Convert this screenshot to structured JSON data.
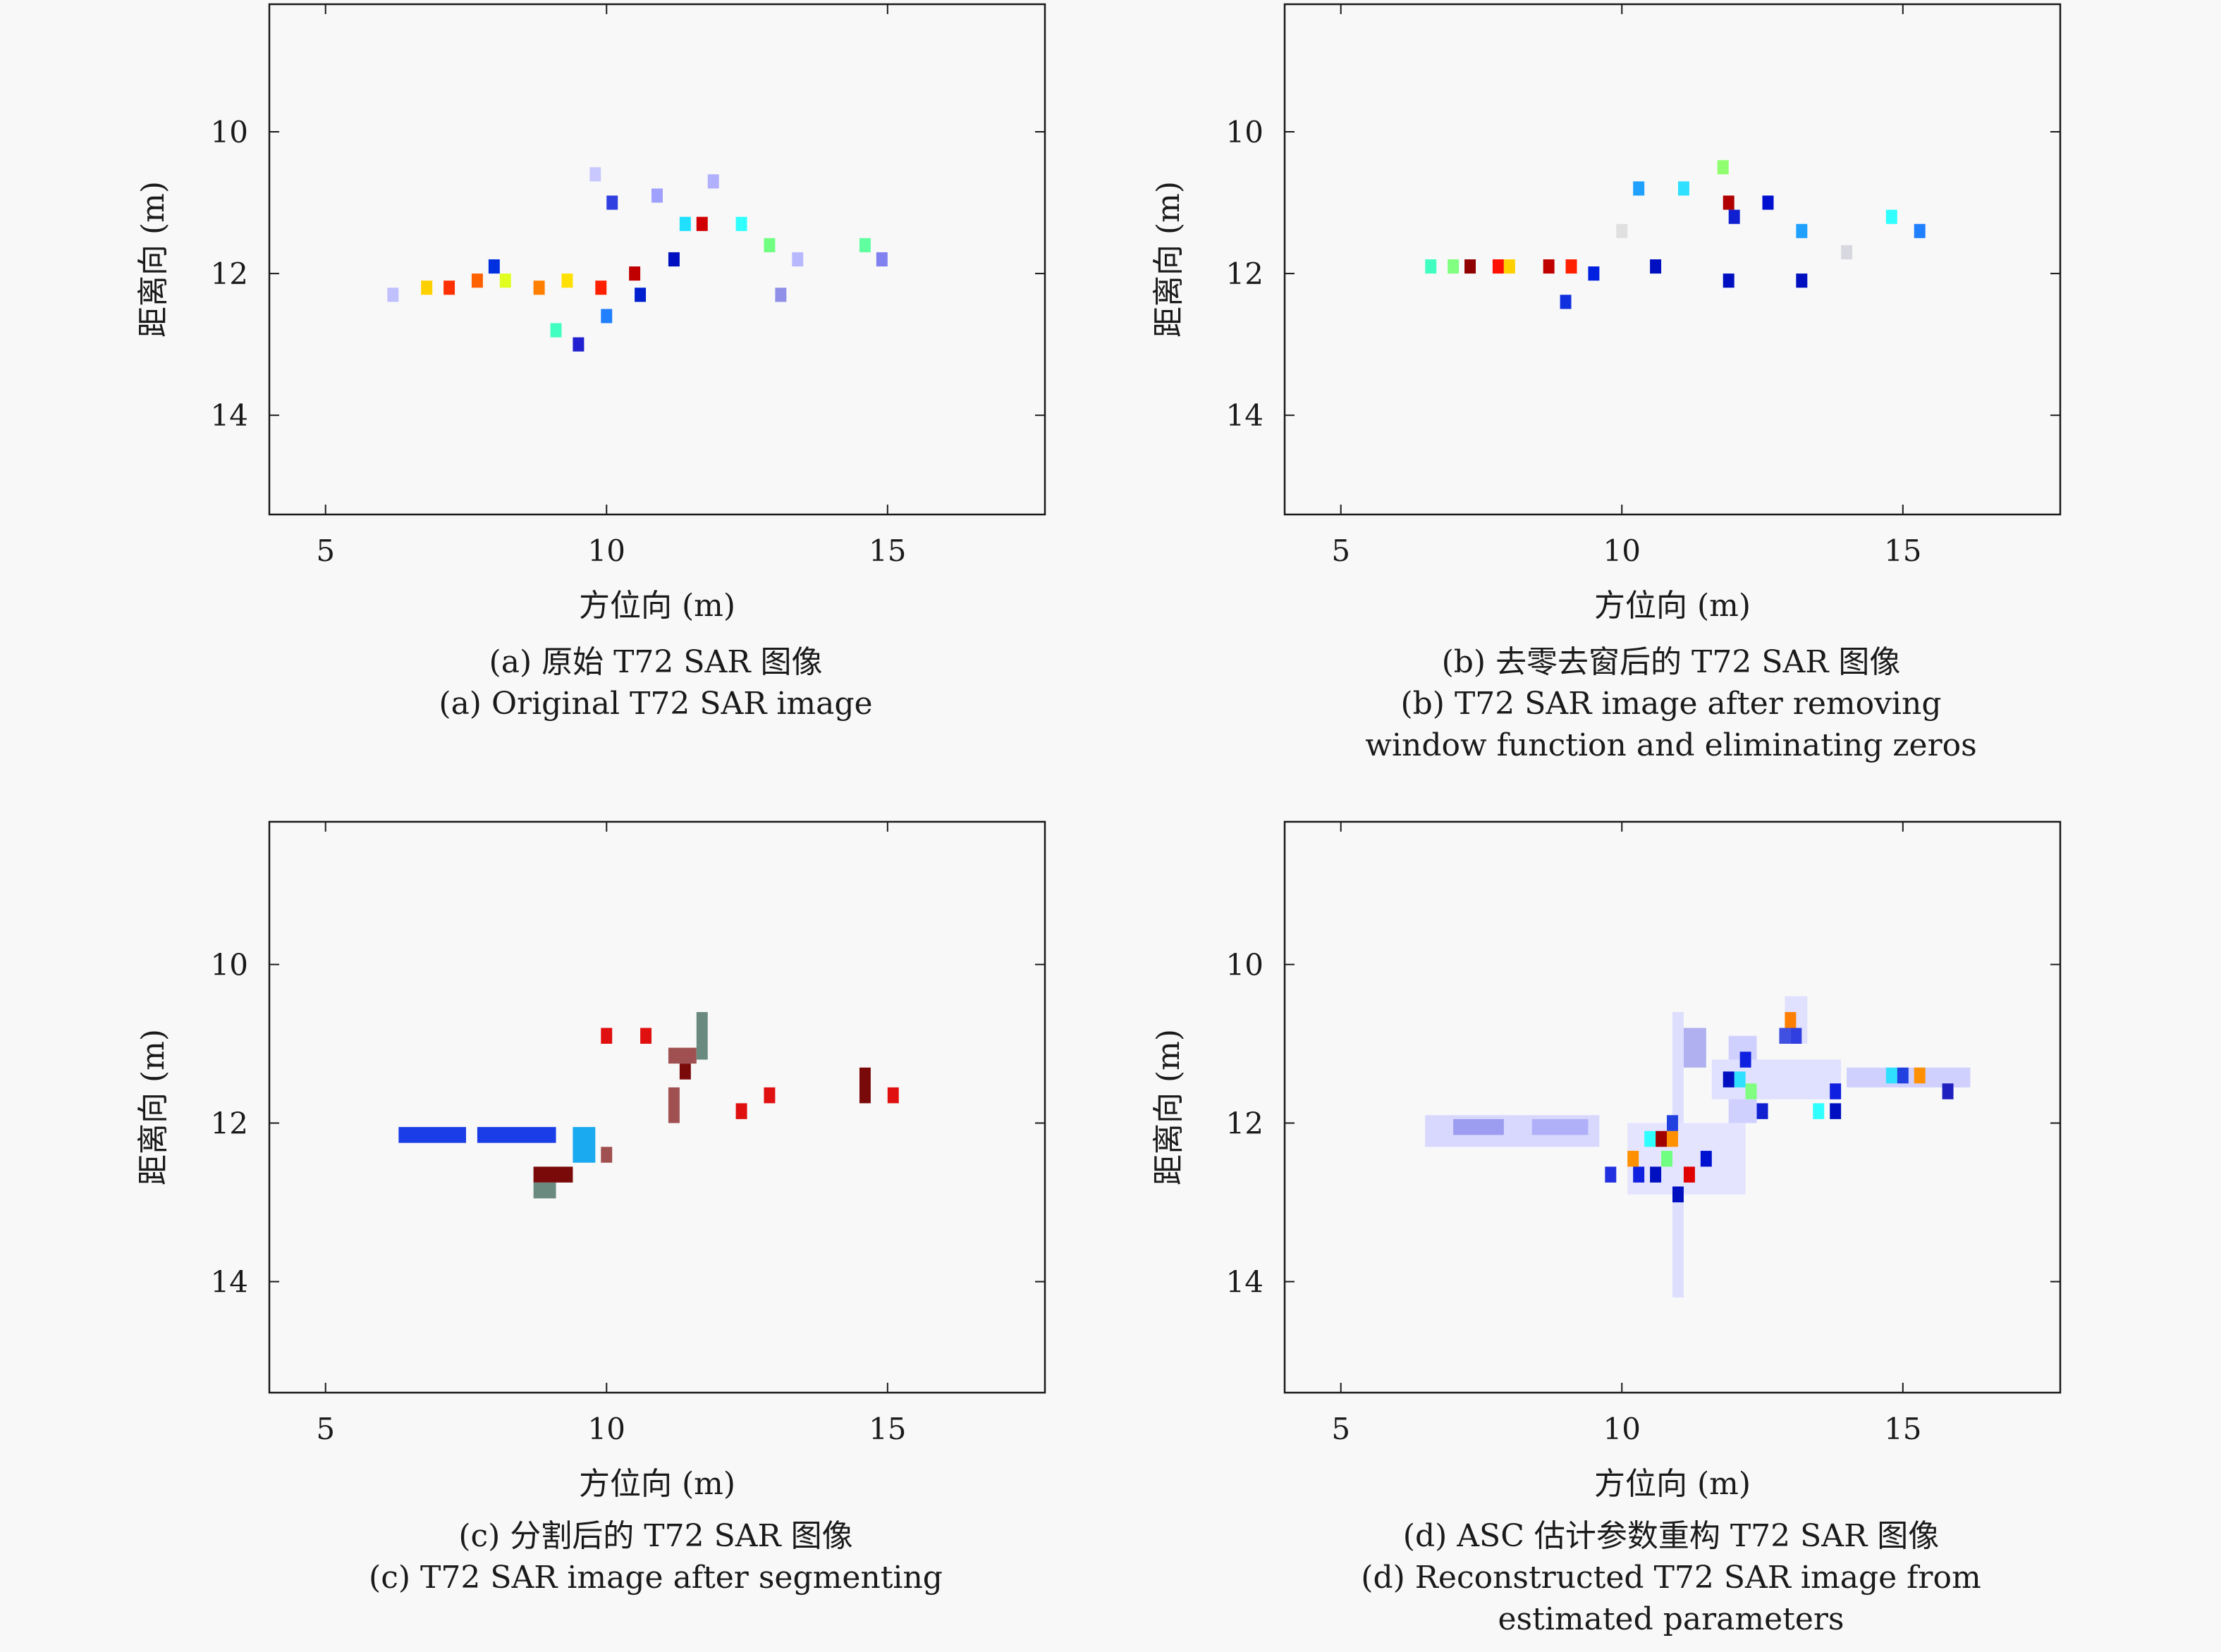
{
  "chart_data": [
    {
      "type": "heatmap",
      "id": "a",
      "xlabel": "方位向 (m)",
      "ylabel": "距离向 (m)",
      "xlim": [
        4,
        17.8
      ],
      "ylim": [
        15.4,
        8.2
      ],
      "xticks": [
        5,
        10,
        15
      ],
      "yticks": [
        10,
        12,
        14
      ],
      "caption_cn": "(a) 原始 T72 SAR 图像",
      "caption_en": [
        "(a) Original T72 SAR image"
      ],
      "cells": [
        {
          "x": 10.5,
          "y": 12.0,
          "c": "#c00000"
        },
        {
          "x": 7.2,
          "y": 12.2,
          "c": "#ff3000"
        },
        {
          "x": 7.7,
          "y": 12.1,
          "c": "#ff6000"
        },
        {
          "x": 8.8,
          "y": 12.2,
          "c": "#ff8000"
        },
        {
          "x": 9.9,
          "y": 12.2,
          "c": "#ff2000"
        },
        {
          "x": 11.7,
          "y": 11.3,
          "c": "#d00000"
        },
        {
          "x": 6.8,
          "y": 12.2,
          "c": "#ffd000"
        },
        {
          "x": 8.2,
          "y": 12.1,
          "c": "#e0ff20"
        },
        {
          "x": 9.3,
          "y": 12.1,
          "c": "#ffe000"
        },
        {
          "x": 12.9,
          "y": 11.6,
          "c": "#70ff80"
        },
        {
          "x": 14.6,
          "y": 11.6,
          "c": "#60ffa0"
        },
        {
          "x": 9.1,
          "y": 12.8,
          "c": "#40ffc0"
        },
        {
          "x": 11.4,
          "y": 11.3,
          "c": "#20e0ff"
        },
        {
          "x": 12.4,
          "y": 11.3,
          "c": "#30ffff"
        },
        {
          "x": 10.0,
          "y": 12.6,
          "c": "#2080ff"
        },
        {
          "x": 8.0,
          "y": 11.9,
          "c": "#0030e0"
        },
        {
          "x": 10.6,
          "y": 12.3,
          "c": "#0020d0"
        },
        {
          "x": 11.2,
          "y": 11.8,
          "c": "#0010c0"
        },
        {
          "x": 10.1,
          "y": 11.0,
          "c": "#3040e0"
        },
        {
          "x": 13.4,
          "y": 11.8,
          "c": "#b8b8ff"
        },
        {
          "x": 14.9,
          "y": 11.8,
          "c": "#8080f0"
        },
        {
          "x": 13.1,
          "y": 12.3,
          "c": "#9090e8"
        },
        {
          "x": 6.2,
          "y": 12.3,
          "c": "#c0c0ff"
        },
        {
          "x": 9.5,
          "y": 13.0,
          "c": "#2020d0"
        },
        {
          "x": 10.9,
          "y": 10.9,
          "c": "#a0a0ff"
        },
        {
          "x": 11.9,
          "y": 10.7,
          "c": "#b0b0ff"
        },
        {
          "x": 9.8,
          "y": 10.6,
          "c": "#c8c8ff"
        }
      ]
    },
    {
      "type": "heatmap",
      "id": "b",
      "xlabel": "方位向 (m)",
      "ylabel": "距离向 (m)",
      "xlim": [
        4,
        17.8
      ],
      "ylim": [
        15.4,
        8.2
      ],
      "xticks": [
        5,
        10,
        15
      ],
      "yticks": [
        10,
        12,
        14
      ],
      "caption_cn": "(b) 去零去窗后的 T72 SAR 图像",
      "caption_en": [
        "(b) T72 SAR image after removing",
        "window function and eliminating zeros"
      ],
      "cells": [
        {
          "x": 7.3,
          "y": 11.9,
          "c": "#900000"
        },
        {
          "x": 8.7,
          "y": 11.9,
          "c": "#c00000"
        },
        {
          "x": 11.9,
          "y": 11.0,
          "c": "#b00000"
        },
        {
          "x": 9.1,
          "y": 11.9,
          "c": "#ff2000"
        },
        {
          "x": 7.8,
          "y": 11.9,
          "c": "#ff1000"
        },
        {
          "x": 8.0,
          "y": 11.9,
          "c": "#ffd000"
        },
        {
          "x": 6.6,
          "y": 11.9,
          "c": "#40ffc0"
        },
        {
          "x": 7.0,
          "y": 11.9,
          "c": "#80ff80"
        },
        {
          "x": 11.8,
          "y": 10.5,
          "c": "#90ff70"
        },
        {
          "x": 10.3,
          "y": 10.8,
          "c": "#20a0ff"
        },
        {
          "x": 11.1,
          "y": 10.8,
          "c": "#30e0ff"
        },
        {
          "x": 13.2,
          "y": 11.4,
          "c": "#20a0ff"
        },
        {
          "x": 14.8,
          "y": 11.2,
          "c": "#30ffff"
        },
        {
          "x": 15.3,
          "y": 11.4,
          "c": "#2080ff"
        },
        {
          "x": 9.5,
          "y": 12.0,
          "c": "#0020e0"
        },
        {
          "x": 10.6,
          "y": 11.9,
          "c": "#0010c0"
        },
        {
          "x": 12.0,
          "y": 11.2,
          "c": "#1020d0"
        },
        {
          "x": 9.0,
          "y": 12.4,
          "c": "#1030e0"
        },
        {
          "x": 12.6,
          "y": 11.0,
          "c": "#0010d0"
        },
        {
          "x": 11.9,
          "y": 12.1,
          "c": "#0010c0"
        },
        {
          "x": 13.2,
          "y": 12.1,
          "c": "#0010c0"
        },
        {
          "x": 14.0,
          "y": 11.7,
          "c": "#d8d8e0"
        },
        {
          "x": 10.0,
          "y": 11.4,
          "c": "#e0e0e0"
        }
      ]
    },
    {
      "type": "heatmap",
      "id": "c",
      "xlabel": "方位向 (m)",
      "ylabel": "距离向 (m)",
      "xlim": [
        4,
        17.8
      ],
      "ylim": [
        15.4,
        8.2
      ],
      "xticks": [
        5,
        10,
        15
      ],
      "yticks": [
        10,
        12,
        14
      ],
      "caption_cn": "(c) 分割后的 T72 SAR 图像",
      "caption_en": [
        "(c) T72 SAR image after segmenting"
      ],
      "rects": [
        {
          "x0": 6.3,
          "x1": 7.5,
          "y0": 12.05,
          "y1": 12.25,
          "c": "#1a3de8"
        },
        {
          "x0": 7.7,
          "x1": 9.1,
          "y0": 12.05,
          "y1": 12.25,
          "c": "#1a3de8"
        },
        {
          "x0": 9.4,
          "x1": 9.8,
          "y0": 12.05,
          "y1": 12.5,
          "c": "#1aaaf0"
        },
        {
          "x0": 9.9,
          "x1": 10.1,
          "y0": 12.3,
          "y1": 12.5,
          "c": "#a05050"
        },
        {
          "x0": 8.7,
          "x1": 9.4,
          "y0": 12.55,
          "y1": 12.75,
          "c": "#7a0a0a"
        },
        {
          "x0": 8.7,
          "x1": 9.1,
          "y0": 12.75,
          "y1": 12.95,
          "c": "#6a8a80"
        },
        {
          "x0": 9.9,
          "x1": 10.1,
          "y0": 10.8,
          "y1": 11.0,
          "c": "#e01010"
        },
        {
          "x0": 10.6,
          "x1": 10.8,
          "y0": 10.8,
          "y1": 11.0,
          "c": "#e01010"
        },
        {
          "x0": 11.1,
          "x1": 11.6,
          "y0": 11.05,
          "y1": 11.25,
          "c": "#a05050"
        },
        {
          "x0": 11.6,
          "x1": 11.8,
          "y0": 10.6,
          "y1": 11.2,
          "c": "#6a8a80"
        },
        {
          "x0": 11.3,
          "x1": 11.5,
          "y0": 11.25,
          "y1": 11.45,
          "c": "#7a0a0a"
        },
        {
          "x0": 11.1,
          "x1": 11.3,
          "y0": 11.55,
          "y1": 12.0,
          "c": "#a05050"
        },
        {
          "x0": 12.3,
          "x1": 12.5,
          "y0": 11.75,
          "y1": 11.95,
          "c": "#e01010"
        },
        {
          "x0": 12.8,
          "x1": 13.0,
          "y0": 11.55,
          "y1": 11.75,
          "c": "#e01010"
        },
        {
          "x0": 14.5,
          "x1": 14.7,
          "y0": 11.3,
          "y1": 11.75,
          "c": "#7a0a0a"
        },
        {
          "x0": 15.0,
          "x1": 15.2,
          "y0": 11.55,
          "y1": 11.75,
          "c": "#e01010"
        }
      ]
    },
    {
      "type": "heatmap",
      "id": "d",
      "xlabel": "方位向 (m)",
      "ylabel": "距离向 (m)",
      "xlim": [
        4,
        17.8
      ],
      "ylim": [
        15.4,
        8.2
      ],
      "xticks": [
        5,
        10,
        15
      ],
      "yticks": [
        10,
        12,
        14
      ],
      "caption_cn": "(d) ASC 估计参数重构 T72 SAR 图像",
      "caption_en": [
        "(d) Reconstructed T72 SAR image from",
        "estimated parameters"
      ],
      "rects": [
        {
          "x0": 6.5,
          "x1": 9.6,
          "y0": 11.9,
          "y1": 12.3,
          "c": "#d8d8ff"
        },
        {
          "x0": 7.0,
          "x1": 7.9,
          "y0": 11.95,
          "y1": 12.15,
          "c": "#9c9cf0"
        },
        {
          "x0": 8.4,
          "x1": 9.4,
          "y0": 11.95,
          "y1": 12.15,
          "c": "#b0b0f8"
        },
        {
          "x0": 10.9,
          "x1": 11.1,
          "y0": 10.6,
          "y1": 14.2,
          "c": "#dedeff"
        },
        {
          "x0": 10.1,
          "x1": 12.2,
          "y0": 12.0,
          "y1": 12.9,
          "c": "#e4e4ff"
        },
        {
          "x0": 11.9,
          "x1": 12.4,
          "y0": 10.9,
          "y1": 12.0,
          "c": "#d0d0ff"
        },
        {
          "x0": 11.6,
          "x1": 13.9,
          "y0": 11.2,
          "y1": 11.7,
          "c": "#e0e0ff"
        },
        {
          "x0": 12.9,
          "x1": 13.3,
          "y0": 10.4,
          "y1": 11.0,
          "c": "#e0e0ff"
        },
        {
          "x0": 14.0,
          "x1": 16.2,
          "y0": 11.3,
          "y1": 11.55,
          "c": "#d0d0ff"
        },
        {
          "x0": 11.1,
          "x1": 11.5,
          "y0": 10.8,
          "y1": 11.3,
          "c": "#b0b0f0"
        }
      ],
      "cells": [
        {
          "x": 11.2,
          "y": 12.65,
          "c": "#e00000"
        },
        {
          "x": 10.7,
          "y": 12.2,
          "c": "#a00000"
        },
        {
          "x": 10.9,
          "y": 12.2,
          "c": "#ff9000"
        },
        {
          "x": 10.2,
          "y": 12.45,
          "c": "#ff9000"
        },
        {
          "x": 13.0,
          "y": 10.7,
          "c": "#ff8000"
        },
        {
          "x": 15.3,
          "y": 11.4,
          "c": "#ff9000"
        },
        {
          "x": 10.5,
          "y": 12.2,
          "c": "#30ffff"
        },
        {
          "x": 10.8,
          "y": 12.45,
          "c": "#70ff80"
        },
        {
          "x": 12.3,
          "y": 11.6,
          "c": "#80ff80"
        },
        {
          "x": 12.1,
          "y": 11.45,
          "c": "#30e0ff"
        },
        {
          "x": 14.8,
          "y": 11.4,
          "c": "#30e0ff"
        },
        {
          "x": 13.5,
          "y": 11.85,
          "c": "#30ffff"
        },
        {
          "x": 10.3,
          "y": 12.65,
          "c": "#1020e0"
        },
        {
          "x": 10.6,
          "y": 12.65,
          "c": "#0010c0"
        },
        {
          "x": 11.0,
          "y": 12.9,
          "c": "#0010c0"
        },
        {
          "x": 11.5,
          "y": 12.45,
          "c": "#0010d0"
        },
        {
          "x": 12.2,
          "y": 11.2,
          "c": "#1020e0"
        },
        {
          "x": 11.9,
          "y": 11.45,
          "c": "#0010c0"
        },
        {
          "x": 12.5,
          "y": 11.85,
          "c": "#1020d0"
        },
        {
          "x": 13.8,
          "y": 11.6,
          "c": "#1020e0"
        },
        {
          "x": 13.8,
          "y": 11.85,
          "c": "#0010c0"
        },
        {
          "x": 15.0,
          "y": 11.4,
          "c": "#2040e0"
        },
        {
          "x": 15.8,
          "y": 11.6,
          "c": "#2020c0"
        },
        {
          "x": 10.9,
          "y": 12.0,
          "c": "#2040e0"
        },
        {
          "x": 9.8,
          "y": 12.65,
          "c": "#2030e0"
        },
        {
          "x": 12.9,
          "y": 10.9,
          "c": "#4050e0"
        },
        {
          "x": 13.1,
          "y": 10.9,
          "c": "#3040e0"
        }
      ]
    }
  ]
}
